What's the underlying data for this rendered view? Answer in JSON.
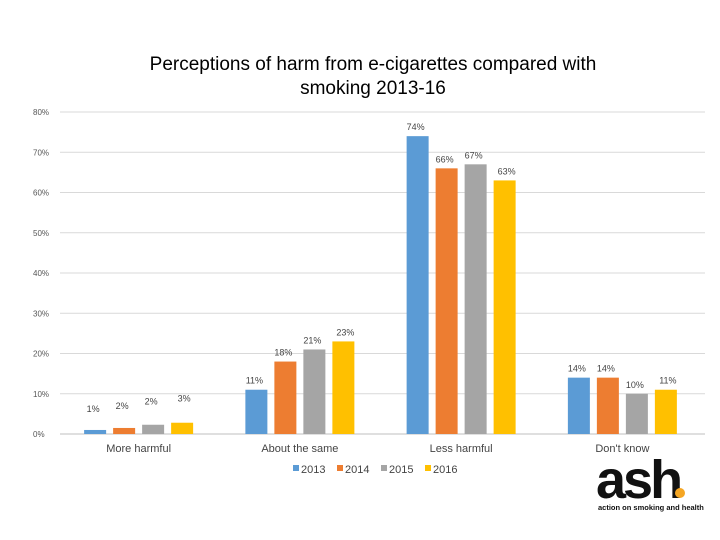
{
  "chart_data": {
    "type": "bar",
    "title_lines": [
      "Perceptions of harm from e-cigarettes compared with",
      "smoking 2013-16"
    ],
    "categories": [
      "More harmful",
      "About the same",
      "Less harmful",
      "Don't know"
    ],
    "series": [
      {
        "name": "2013",
        "color": "#5B9BD5",
        "values": [
          1,
          11,
          74,
          14
        ],
        "labels": [
          "1%",
          "11%",
          "74%",
          "14%"
        ]
      },
      {
        "name": "2014",
        "color": "#ED7D31",
        "values": [
          1.5,
          18,
          66,
          14
        ],
        "labels": [
          "2%",
          "18%",
          "66%",
          "14%"
        ]
      },
      {
        "name": "2015",
        "color": "#A5A5A5",
        "values": [
          2.3,
          21,
          67,
          10
        ],
        "labels": [
          "2%",
          "21%",
          "67%",
          "10%"
        ]
      },
      {
        "name": "2016",
        "color": "#FFC000",
        "values": [
          2.8,
          23,
          63,
          11
        ],
        "labels": [
          "3%",
          "23%",
          "63%",
          "11%"
        ]
      }
    ],
    "ylim": [
      0,
      80
    ],
    "yticks": [
      0,
      10,
      20,
      30,
      40,
      50,
      60,
      70,
      80
    ],
    "ytick_labels": [
      "0%",
      "10%",
      "20%",
      "30%",
      "40%",
      "50%",
      "60%",
      "70%",
      "80%"
    ],
    "grid": true,
    "legend_position": "bottom"
  },
  "logo": {
    "text": "ash",
    "tagline": "action on smoking and health",
    "accent_color": "#F5A623"
  }
}
